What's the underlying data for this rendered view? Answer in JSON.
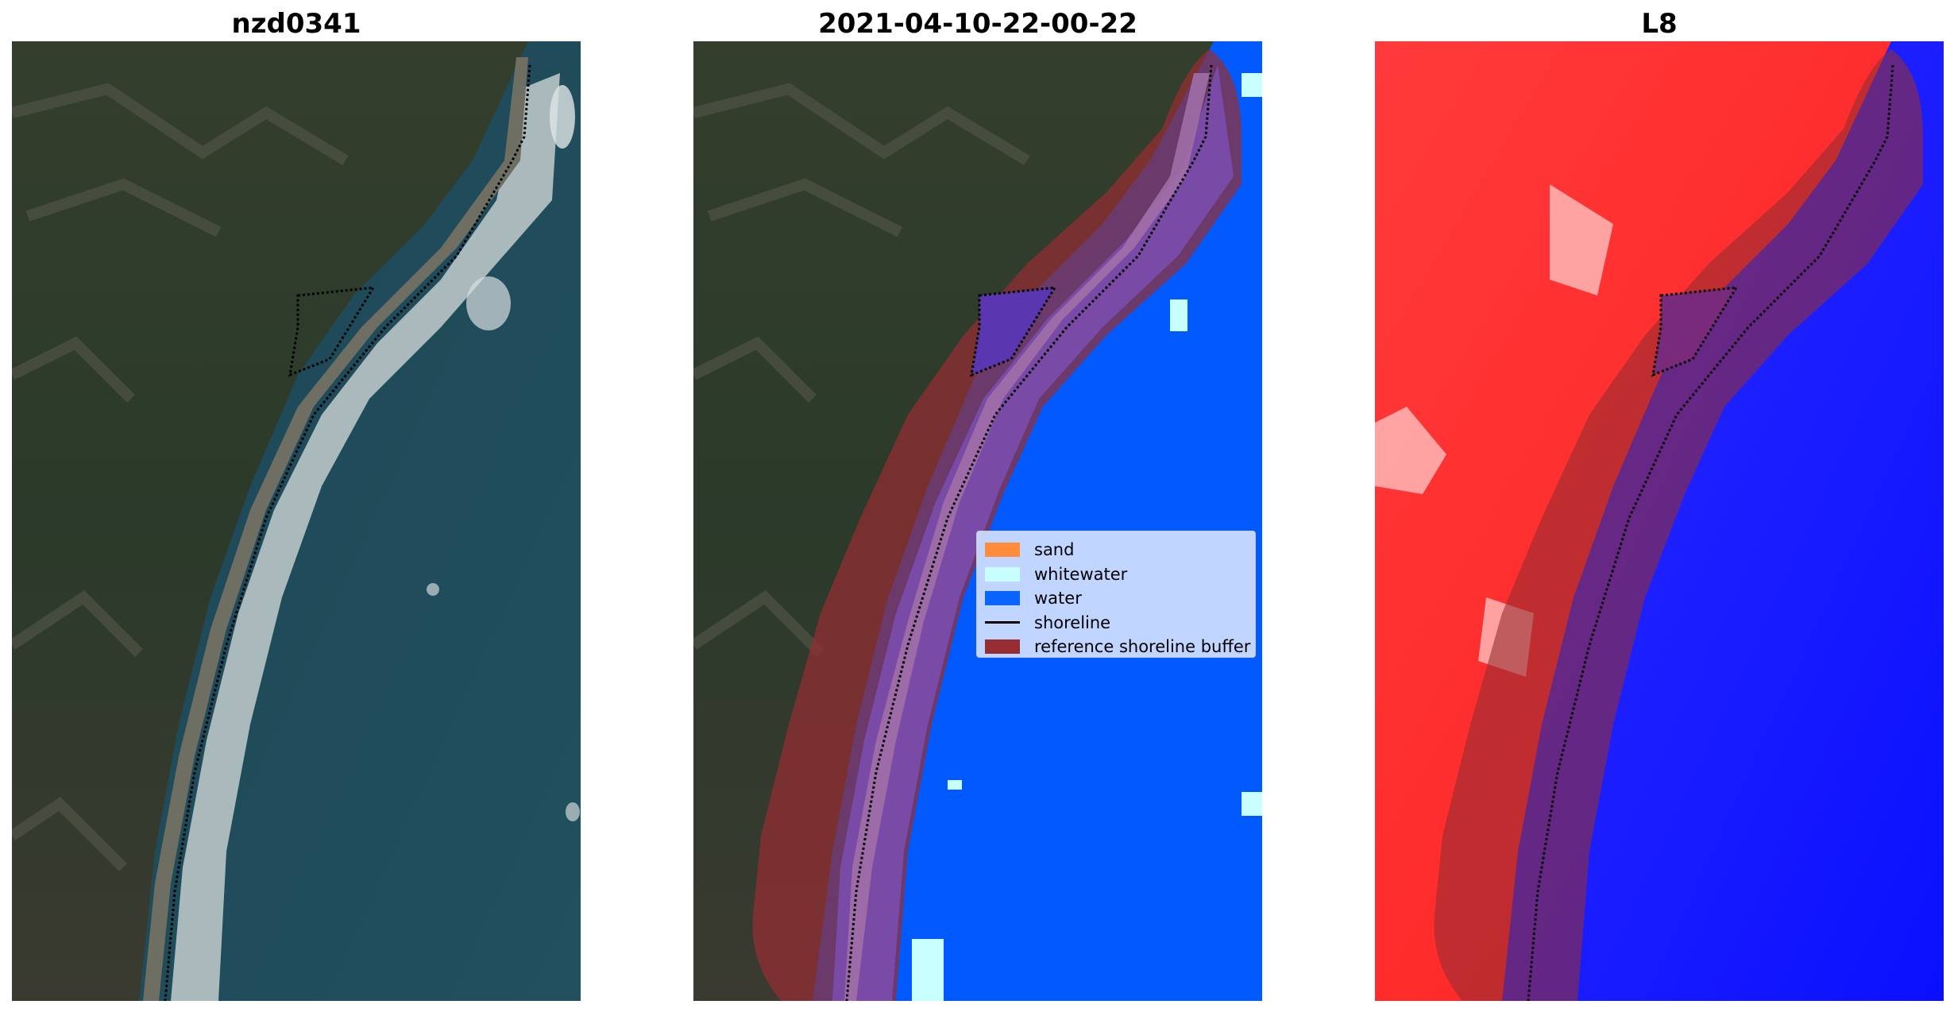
{
  "panels": [
    {
      "title": "nzd0341"
    },
    {
      "title": "2021-04-10-22-00-22"
    },
    {
      "title": "L8"
    }
  ],
  "legend": {
    "items": [
      {
        "label": "sand",
        "color": "#ff8c3c",
        "kind": "patch"
      },
      {
        "label": "whitewater",
        "color": "#c8ffff",
        "kind": "patch"
      },
      {
        "label": "water",
        "color": "#0a64ff",
        "kind": "patch"
      },
      {
        "label": "shoreline",
        "color": "#000000",
        "kind": "line"
      },
      {
        "label": "reference shoreline buffer",
        "color": "#962d32",
        "kind": "patch"
      }
    ]
  },
  "colors": {
    "land": "#2f3a2c",
    "sea": "#1f4a5a",
    "water_class": "#005aff",
    "buffer": "#962d32",
    "l8_land": "#ff2a2a",
    "l8_water": "#0a14ff"
  }
}
